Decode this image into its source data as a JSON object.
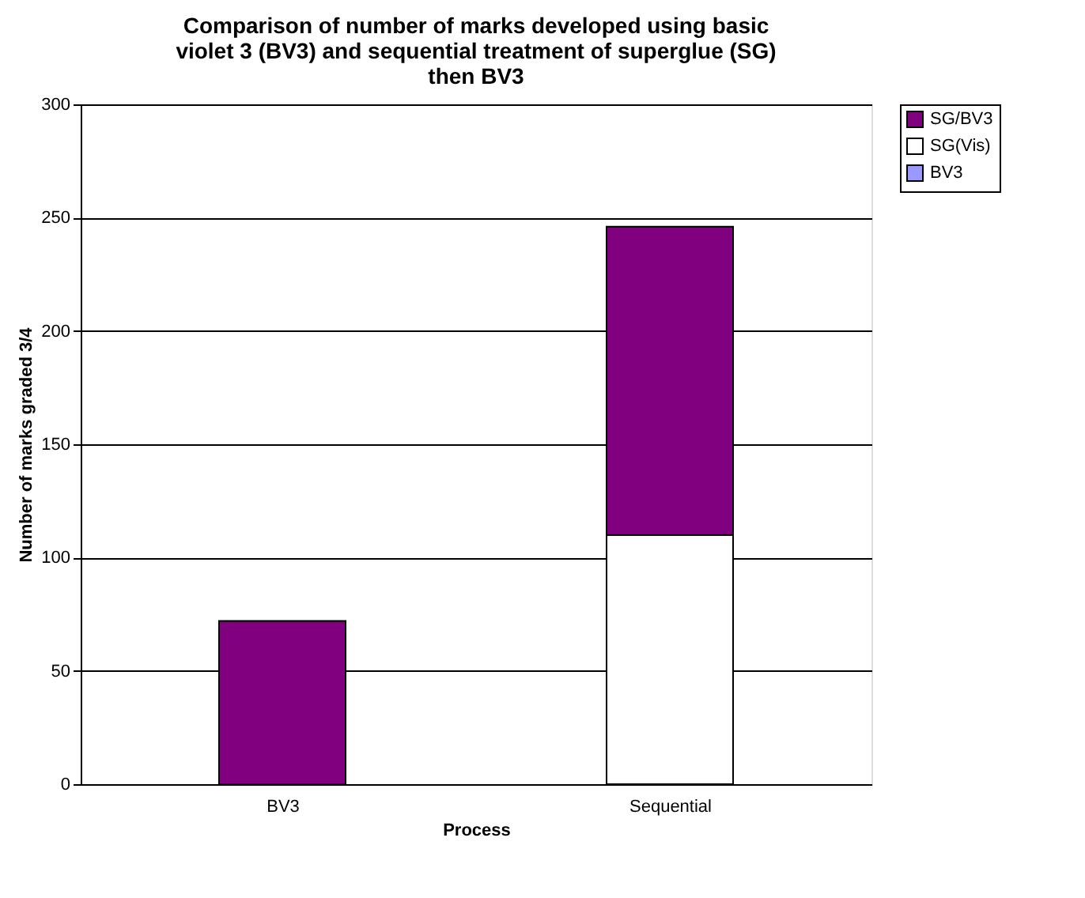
{
  "chart_data": {
    "type": "bar",
    "title": [
      "Comparison of number of marks developed using basic",
      "violet 3 (BV3) and sequential treatment of superglue (SG)",
      "then BV3"
    ],
    "xlabel": "Process",
    "ylabel": "Number of marks graded 3/4",
    "categories": [
      "BV3",
      "Sequential"
    ],
    "stacked": true,
    "series": [
      {
        "name": "BV3",
        "color": "#9999ff",
        "values": [
          0,
          0
        ]
      },
      {
        "name": "SG(Vis)",
        "color": "#ffffff",
        "values": [
          0,
          110
        ]
      },
      {
        "name": "SG/BV3",
        "color": "#800080",
        "values": [
          72,
          136
        ]
      }
    ],
    "ylim": [
      0,
      300
    ],
    "yticks": [
      0,
      50,
      100,
      150,
      200,
      250,
      300
    ],
    "grid": "y",
    "legend": "right"
  }
}
